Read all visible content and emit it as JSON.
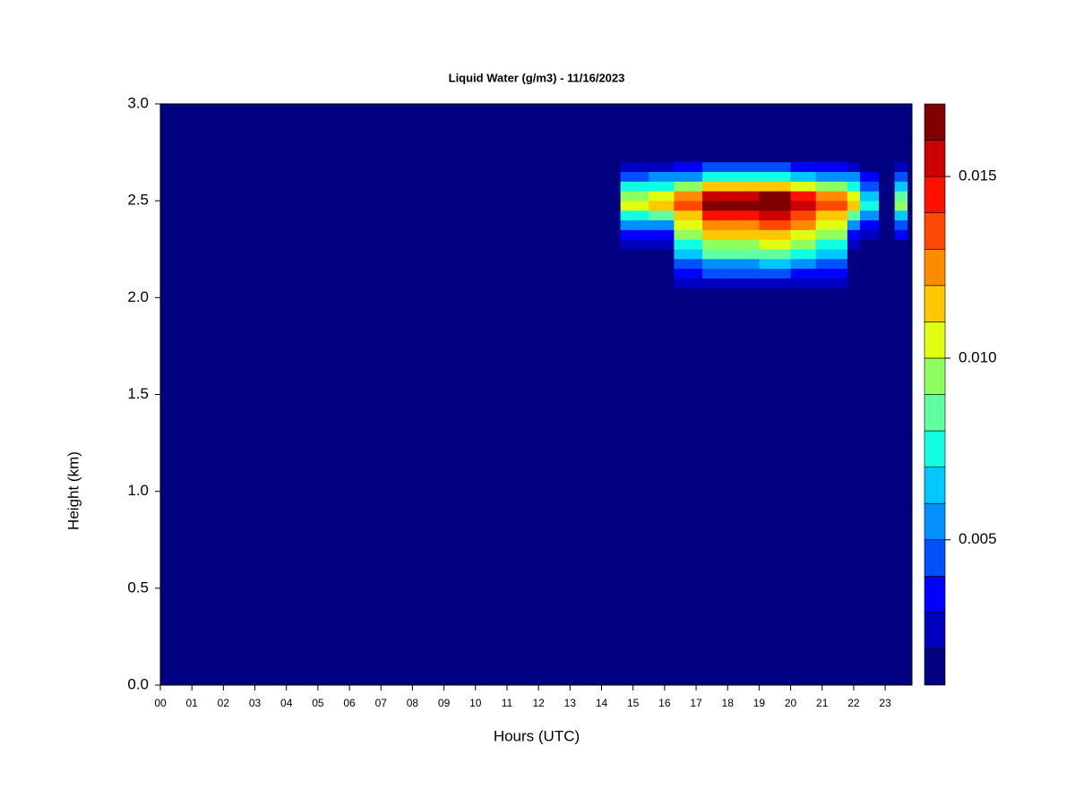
{
  "chart_data": {
    "type": "heatmap",
    "title": "Liquid Water (g/m3) - 11/16/2023",
    "x_label": "Hours (UTC)",
    "y_label": "Height (km)",
    "xlim": [
      0,
      23.85
    ],
    "ylim": [
      0,
      3
    ],
    "xticks": [
      {
        "value": 0,
        "label": "00"
      },
      {
        "value": 1,
        "label": "01"
      },
      {
        "value": 2,
        "label": "02"
      },
      {
        "value": 3,
        "label": "03"
      },
      {
        "value": 4,
        "label": "04"
      },
      {
        "value": 5,
        "label": "05"
      },
      {
        "value": 6,
        "label": "06"
      },
      {
        "value": 7,
        "label": "07"
      },
      {
        "value": 8,
        "label": "08"
      },
      {
        "value": 9,
        "label": "09"
      },
      {
        "value": 10,
        "label": "10"
      },
      {
        "value": 11,
        "label": "11"
      },
      {
        "value": 12,
        "label": "12"
      },
      {
        "value": 13,
        "label": "13"
      },
      {
        "value": 14,
        "label": "14"
      },
      {
        "value": 15,
        "label": "15"
      },
      {
        "value": 16,
        "label": "16"
      },
      {
        "value": 17,
        "label": "17"
      },
      {
        "value": 18,
        "label": "18"
      },
      {
        "value": 19,
        "label": "19"
      },
      {
        "value": 20,
        "label": "20"
      },
      {
        "value": 21,
        "label": "21"
      },
      {
        "value": 22,
        "label": "22"
      },
      {
        "value": 23,
        "label": "23"
      }
    ],
    "yticks": [
      {
        "value": 0,
        "label": "0.0"
      },
      0.5,
      {
        "value": 1,
        "label": "1.0"
      },
      1.5,
      {
        "value": 2,
        "label": "2.0"
      },
      2.5,
      {
        "value": 3,
        "label": "3.0"
      }
    ],
    "x": [
      14.6,
      15.5,
      16.3,
      17.2,
      18.0,
      19.0,
      20.0,
      20.8,
      21.8,
      22.2,
      22.8,
      23.3,
      23.7
    ],
    "y": [
      2.05,
      2.1,
      2.15,
      2.2,
      2.25,
      2.3,
      2.35,
      2.4,
      2.45,
      2.5,
      2.55,
      2.6,
      2.65,
      2.7,
      2.75
    ],
    "values": [
      [
        0,
        0,
        0,
        0,
        0.002,
        0.0035,
        0.005,
        0.0075,
        0.01,
        0.0095,
        0.007,
        0.0045,
        0.0025,
        0.001
      ],
      [
        0,
        0,
        0,
        0,
        0.0022,
        0.0039,
        0.0055,
        0.0083,
        0.011,
        0.0105,
        0.0077,
        0.005,
        0.0028,
        0.0011
      ],
      [
        0.002,
        0.0033,
        0.0046,
        0.0065,
        0.0078,
        0.0091,
        0.0104,
        0.0117,
        0.013,
        0.0124,
        0.0091,
        0.0059,
        0.0033,
        0.0013
      ],
      [
        0.0024,
        0.004,
        0.0056,
        0.008,
        0.0096,
        0.0112,
        0.0128,
        0.0144,
        0.016,
        0.0152,
        0.0112,
        0.0072,
        0.004,
        0.0016
      ],
      [
        0.0024,
        0.004,
        0.0056,
        0.008,
        0.0096,
        0.0112,
        0.0128,
        0.0144,
        0.016,
        0.0152,
        0.0112,
        0.0072,
        0.004,
        0.0016
      ],
      [
        0.0026,
        0.0043,
        0.006,
        0.0085,
        0.0102,
        0.0119,
        0.0136,
        0.0153,
        0.017,
        0.0162,
        0.0119,
        0.0077,
        0.0043,
        0.0017
      ],
      [
        0.0023,
        0.0038,
        0.0053,
        0.0075,
        0.009,
        0.0105,
        0.012,
        0.0135,
        0.015,
        0.0143,
        0.0105,
        0.0068,
        0.0038,
        0.0015
      ],
      [
        0.002,
        0.0033,
        0.0046,
        0.0065,
        0.0078,
        0.0091,
        0.0104,
        0.0117,
        0.013,
        0.0124,
        0.0091,
        0.0059,
        0.0033,
        0.0013
      ],
      [
        0,
        0,
        0,
        0,
        0.0022,
        0.0039,
        0.0055,
        0.0083,
        0.011,
        0.0105,
        0.0077,
        0.005,
        0.0028,
        0.0011
      ],
      [
        0,
        0,
        0,
        0,
        0.0014,
        0.0025,
        0.0035,
        0.0053,
        0.007,
        0.0067,
        0.0049,
        0.0032,
        0.0018,
        0.0007
      ],
      [
        0,
        0,
        0,
        0,
        0,
        0,
        0,
        0,
        0,
        0,
        0,
        0,
        0,
        0
      ],
      [
        0,
        0,
        0,
        0,
        0.0018,
        0.0032,
        0.0045,
        0.0068,
        0.009,
        0.0086,
        0.0063,
        0.0041,
        0.0023,
        0.0009
      ]
    ],
    "colorbar": {
      "levels": [
        0.001,
        0.002,
        0.003,
        0.004,
        0.005,
        0.006,
        0.007,
        0.008,
        0.009,
        0.01,
        0.011,
        0.012,
        0.013,
        0.014,
        0.015,
        0.016,
        0.017
      ],
      "colors": [
        "#000080",
        "#0000c0",
        "#0000ff",
        "#0050ff",
        "#0090ff",
        "#00c8ff",
        "#10ffe0",
        "#60ffa0",
        "#90ff60",
        "#e0ff10",
        "#ffc800",
        "#ff8c00",
        "#ff4800",
        "#ff1000",
        "#cc0000",
        "#800000"
      ],
      "ticks": [
        0.005,
        {
          "value": 0.01,
          "label": "0.010"
        },
        0.015
      ]
    }
  }
}
